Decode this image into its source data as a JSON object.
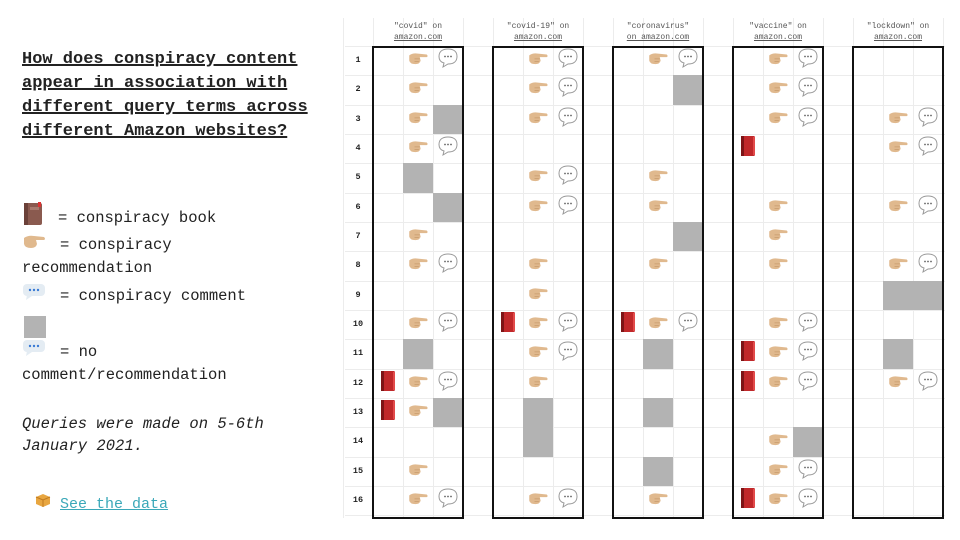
{
  "title": "How does conspiracy content appear in association with different query terms across different Amazon websites?",
  "legend": {
    "book": "= conspiracy book",
    "recommendation_1": "= conspiracy",
    "recommendation_2": "recommendation",
    "comment": "= conspiracy comment",
    "none_1": "= no",
    "none_2": "comment/recommendation"
  },
  "note": "Queries were made on 5-6th January 2021.",
  "link": {
    "icon": "package-icon",
    "label": "See the data"
  },
  "colors": {
    "gray_cell": "#b3b3b3",
    "book": "#c0282a",
    "hand": "#e0b98e",
    "link": "#3aa8b8"
  },
  "grid": {
    "row_labels": [
      "1",
      "2",
      "3",
      "4",
      "5",
      "6",
      "7",
      "8",
      "9",
      "10",
      "11",
      "12",
      "13",
      "14",
      "15",
      "16"
    ],
    "cell_key": {
      "B": "conspiracy book",
      "H": "conspiracy recommendation",
      "C": "conspiracy comment",
      "G": "no comment/recommendation",
      "_": "none"
    },
    "groups": [
      {
        "header_1": "\"covid\" on",
        "header_2": "amazon.com",
        "rows": [
          "_HC",
          "_H_",
          "_HG",
          "_HC",
          "_G_",
          "__G",
          "_H_",
          "_HC",
          "___",
          "_HC",
          "_G_",
          "BHC",
          "BHG",
          "___",
          "_H_",
          "_HC"
        ]
      },
      {
        "header_1": "\"covid-19\" on",
        "header_2": "amazon.com",
        "rows": [
          "_HC",
          "_HC",
          "_HC",
          "___",
          "_HC",
          "_HC",
          "___",
          "_H_",
          "_H_",
          "BHC",
          "_HC",
          "_H_",
          "_G_",
          "_G_",
          "___",
          "_HC"
        ]
      },
      {
        "header_1": "\"coronavirus\"",
        "header_2": "on amazon.com",
        "rows": [
          "_HC",
          "__G",
          "___",
          "___",
          "_H_",
          "_H_",
          "__G",
          "_H_",
          "___",
          "BHC",
          "_G_",
          "___",
          "_G_",
          "___",
          "_G_",
          "_H_"
        ]
      },
      {
        "header_1": "\"vaccine\" on",
        "header_2": "amazon.com",
        "rows": [
          "_HC",
          "_HC",
          "_HC",
          "B__",
          "___",
          "_H_",
          "_H_",
          "_H_",
          "___",
          "_HC",
          "BHC",
          "BHC",
          "___",
          "_HG",
          "_HC",
          "BHC"
        ]
      },
      {
        "header_1": "\"lockdown\" on",
        "header_2": "amazon.com",
        "rows": [
          "___",
          "___",
          "_HC",
          "_HC",
          "___",
          "_HC",
          "___",
          "_HC",
          "_GG",
          "___",
          "_G_",
          "_HC",
          "___",
          "___",
          "___",
          "___"
        ]
      }
    ]
  }
}
